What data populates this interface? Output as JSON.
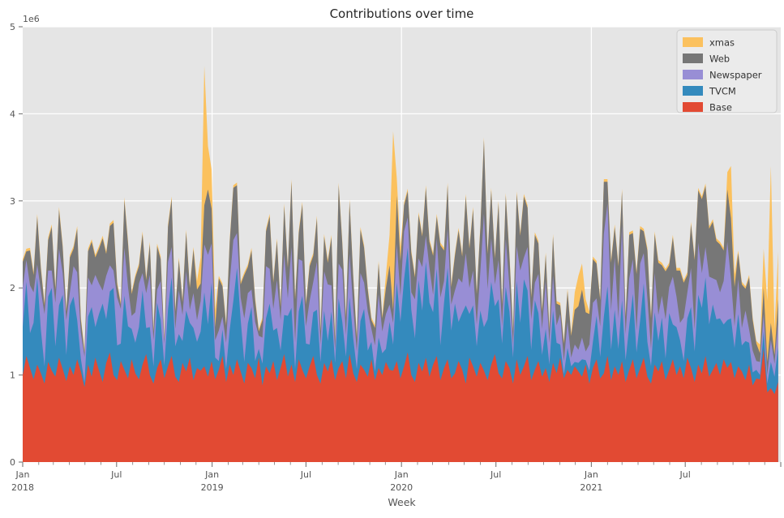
{
  "figure": {
    "title": "Contributions over time",
    "xlabel": "Week",
    "y_offset_label": "1e6"
  },
  "colors": {
    "fig_bg": "#ffffff",
    "axes_bg": "#e5e5e5",
    "grid": "#ffffff",
    "title_text": "#262626",
    "tick_text": "#555555",
    "tick_mark": "#777777",
    "legend_bg": "#ebebeb",
    "legend_border": "#cccccc"
  },
  "chart_data": {
    "type": "area",
    "stacked": true,
    "title": "Contributions over time",
    "xlabel": "Week",
    "ylabel": "",
    "ylim": [
      0,
      5
    ],
    "values_unit_multiplier": 1000000,
    "y_offset_text": "1e6",
    "y_ticks": [
      {
        "value": 0,
        "label": "0"
      },
      {
        "value": 1,
        "label": "1"
      },
      {
        "value": 2,
        "label": "2"
      },
      {
        "value": 3,
        "label": "3"
      },
      {
        "value": 4,
        "label": "4"
      },
      {
        "value": 5,
        "label": "5"
      }
    ],
    "x_unit": "weeks since 2018-01-01",
    "x_range": [
      0,
      208.714
    ],
    "x_major_ticks": [
      {
        "week": 0,
        "month": "Jan",
        "year": "2018"
      },
      {
        "week": 25.857,
        "month": "Jul",
        "year": ""
      },
      {
        "week": 52.143,
        "month": "Jan",
        "year": "2019"
      },
      {
        "week": 78.0,
        "month": "Jul",
        "year": ""
      },
      {
        "week": 104.286,
        "month": "Jan",
        "year": "2020"
      },
      {
        "week": 130.286,
        "month": "Jul",
        "year": ""
      },
      {
        "week": 156.571,
        "month": "Jan",
        "year": "2021"
      },
      {
        "week": 182.429,
        "month": "Jul",
        "year": ""
      },
      {
        "week": 208.714,
        "month": "",
        "year": ""
      }
    ],
    "grid": {
      "on": true,
      "color": "#ffffff",
      "vertical_at_weeks": [
        52.143,
        104.286,
        156.571
      ]
    },
    "legend": {
      "position": "upper right",
      "order_top_to_bottom": [
        "xmas",
        "Web",
        "Newspaper",
        "TVCM",
        "Base"
      ]
    },
    "series": [
      {
        "name": "Base",
        "color": "#E24A33",
        "values": [
          1.0,
          1.22,
          1.08,
          0.95,
          1.12,
          1.02,
          0.9,
          1.15,
          1.05,
          0.98,
          1.2,
          1.07,
          0.93,
          1.1,
          1.0,
          1.18,
          1.04,
          0.86,
          1.12,
          0.98,
          1.2,
          1.05,
          0.92,
          1.14,
          1.26,
          1.0,
          0.94,
          1.16,
          1.06,
          0.96,
          1.18,
          1.02,
          0.95,
          1.12,
          1.24,
          1.0,
          0.9,
          1.08,
          1.18,
          0.96,
          1.1,
          1.22,
          0.98,
          0.92,
          1.14,
          1.04,
          1.2,
          0.94,
          1.08,
          1.05,
          1.1,
          0.98,
          1.16,
          0.95,
          1.06,
          1.22,
          0.92,
          1.12,
          1.0,
          1.18,
          1.04,
          0.9,
          1.14,
          1.08,
          0.96,
          1.2,
          0.88,
          1.1,
          1.02,
          1.16,
          0.94,
          1.08,
          1.24,
          0.98,
          1.12,
          0.92,
          1.18,
          1.06,
          0.96,
          1.1,
          1.22,
          1.0,
          0.9,
          1.14,
          1.04,
          1.18,
          0.94,
          1.08,
          1.16,
          0.96,
          1.24,
          1.02,
          0.92,
          1.12,
          1.06,
          0.98,
          1.18,
          0.94,
          1.08,
          1.0,
          1.15,
          1.06,
          1.05,
          1.16,
          0.96,
          1.1,
          1.26,
          1.0,
          0.92,
          1.14,
          1.04,
          1.2,
          0.98,
          1.12,
          1.22,
          0.94,
          1.08,
          1.18,
          0.96,
          1.02,
          1.16,
          1.06,
          0.9,
          1.2,
          1.1,
          0.98,
          1.14,
          1.05,
          0.94,
          1.12,
          1.24,
          1.02,
          0.96,
          1.16,
          1.08,
          0.9,
          1.18,
          1.0,
          1.1,
          1.22,
          0.94,
          1.06,
          1.16,
          0.98,
          1.08,
          0.92,
          1.14,
          1.02,
          1.2,
          0.96,
          1.06,
          1.0,
          1.1,
          1.04,
          0.98,
          1.12,
          0.9,
          1.08,
          1.18,
          0.96,
          1.02,
          1.22,
          0.94,
          1.1,
          1.0,
          1.16,
          0.92,
          1.06,
          1.18,
          0.96,
          1.08,
          1.2,
          0.98,
          0.9,
          1.12,
          1.04,
          1.16,
          0.94,
          1.06,
          1.18,
          1.0,
          1.1,
          0.96,
          1.2,
          1.08,
          0.92,
          1.12,
          1.02,
          1.22,
          0.98,
          1.06,
          1.14,
          1.0,
          1.18,
          1.08,
          1.15,
          0.96,
          1.1,
          1.04,
          0.94,
          1.12,
          0.88,
          0.96,
          0.95,
          1.3,
          0.8,
          0.85,
          0.78,
          0.92
        ]
      },
      {
        "name": "TVCM",
        "color": "#348ABD",
        "values": [
          0.55,
          0.85,
          0.4,
          0.65,
          1.0,
          0.5,
          0.2,
          0.75,
          0.95,
          0.35,
          0.6,
          0.85,
          0.3,
          0.7,
          0.9,
          0.45,
          0.15,
          0.05,
          0.55,
          0.8,
          0.35,
          0.65,
          0.9,
          0.5,
          0.7,
          1.0,
          0.4,
          0.2,
          0.85,
          0.6,
          0.35,
          0.35,
          0.6,
          0.85,
          0.3,
          0.55,
          0.2,
          0.75,
          0.45,
          0.15,
          0.65,
          0.9,
          0.35,
          0.55,
          0.25,
          0.7,
          0.4,
          0.6,
          0.3,
          0.45,
          0.85,
          0.6,
          0.9,
          0.25,
          0.1,
          0.3,
          0.15,
          0.4,
          0.85,
          1.05,
          0.6,
          0.25,
          0.45,
          0.7,
          0.2,
          0.1,
          0.25,
          0.55,
          0.8,
          0.35,
          0.6,
          0.2,
          0.45,
          0.7,
          0.65,
          0.15,
          0.55,
          0.85,
          0.4,
          0.25,
          0.5,
          0.75,
          0.25,
          0.6,
          0.35,
          0.55,
          0.2,
          0.8,
          0.45,
          0.25,
          0.65,
          0.4,
          0.15,
          0.5,
          0.7,
          0.3,
          0.2,
          0.1,
          0.35,
          0.25,
          0.15,
          0.55,
          0.3,
          0.9,
          0.65,
          1.0,
          1.2,
          0.75,
          0.5,
          0.95,
          0.7,
          1.1,
          0.85,
          0.6,
          1.0,
          0.4,
          0.75,
          1.05,
          0.55,
          0.8,
          0.45,
          0.65,
          0.9,
          0.5,
          0.7,
          0.35,
          0.6,
          0.5,
          0.7,
          0.95,
          0.55,
          0.85,
          0.4,
          0.85,
          0.65,
          0.3,
          0.9,
          0.6,
          1.0,
          0.75,
          0.35,
          0.8,
          0.55,
          0.25,
          0.45,
          0.2,
          0.6,
          0.35,
          0.15,
          0.05,
          0.25,
          0.1,
          0.05,
          0.1,
          0.2,
          0.05,
          0.15,
          0.3,
          0.5,
          0.25,
          0.65,
          0.8,
          0.35,
          0.65,
          0.3,
          0.7,
          0.25,
          0.5,
          0.75,
          0.3,
          0.55,
          0.85,
          0.4,
          0.2,
          0.6,
          0.35,
          0.5,
          0.25,
          0.65,
          0.4,
          0.55,
          0.3,
          0.2,
          0.45,
          0.7,
          0.35,
          0.8,
          0.75,
          0.9,
          0.6,
          0.75,
          0.5,
          0.65,
          0.4,
          0.55,
          0.5,
          0.35,
          0.6,
          0.3,
          0.45,
          0.25,
          0.15,
          0.1,
          0.05,
          0.2,
          0.1,
          0.3,
          0.2,
          0.4
        ]
      },
      {
        "name": "Newspaper",
        "color": "#988ED5",
        "values": [
          0.45,
          0.25,
          0.55,
          0.35,
          0.15,
          0.45,
          0.6,
          0.3,
          0.2,
          0.5,
          0.65,
          0.25,
          0.4,
          0.15,
          0.35,
          0.55,
          0.3,
          0.3,
          0.45,
          0.25,
          0.6,
          0.35,
          0.15,
          0.5,
          0.3,
          0.2,
          0.55,
          0.4,
          0.55,
          0.45,
          0.15,
          0.35,
          0.5,
          0.2,
          0.4,
          0.6,
          0.3,
          0.15,
          0.45,
          0.25,
          0.55,
          0.35,
          0.2,
          0.5,
          0.3,
          0.45,
          0.15,
          0.4,
          0.25,
          0.35,
          0.55,
          0.8,
          0.45,
          0.2,
          0.35,
          0.15,
          0.3,
          0.55,
          0.7,
          0.4,
          0.25,
          0.5,
          0.35,
          0.2,
          0.45,
          0.15,
          0.3,
          0.6,
          0.4,
          0.25,
          0.55,
          0.35,
          0.7,
          0.2,
          0.7,
          0.3,
          0.6,
          0.4,
          0.2,
          0.5,
          0.35,
          0.55,
          0.2,
          0.45,
          0.65,
          0.3,
          0.15,
          0.4,
          0.6,
          0.25,
          0.5,
          0.35,
          0.2,
          0.55,
          0.3,
          0.45,
          0.15,
          0.3,
          0.5,
          0.25,
          0.4,
          0.2,
          0.25,
          0.45,
          0.3,
          0.55,
          0.35,
          0.2,
          0.45,
          0.25,
          0.5,
          0.3,
          0.4,
          0.2,
          0.35,
          0.55,
          0.25,
          0.45,
          0.3,
          0.15,
          0.5,
          0.35,
          0.6,
          0.3,
          0.4,
          0.25,
          0.45,
          1.3,
          0.35,
          0.5,
          0.25,
          0.45,
          0.2,
          0.55,
          0.3,
          0.15,
          0.4,
          0.6,
          0.25,
          0.5,
          0.35,
          0.2,
          0.45,
          0.3,
          0.55,
          0.25,
          0.4,
          0.2,
          0.35,
          0.15,
          0.3,
          0.1,
          0.2,
          0.15,
          0.25,
          0.1,
          0.3,
          0.45,
          0.2,
          0.35,
          0.95,
          0.95,
          0.45,
          0.6,
          0.35,
          0.85,
          0.3,
          0.55,
          0.4,
          0.25,
          0.65,
          0.35,
          0.5,
          0.2,
          0.45,
          0.3,
          0.25,
          0.45,
          0.3,
          0.55,
          0.35,
          0.2,
          0.5,
          0.3,
          0.45,
          0.25,
          0.6,
          0.4,
          0.35,
          0.55,
          0.3,
          0.45,
          0.3,
          0.5,
          0.9,
          0.45,
          0.25,
          0.4,
          0.2,
          0.35,
          0.15,
          0.25,
          0.1,
          0.15,
          0.2,
          0.1,
          0.25,
          0.15,
          0.3
        ]
      },
      {
        "name": "Web",
        "color": "#777777",
        "values": [
          0.3,
          0.1,
          0.4,
          0.2,
          0.55,
          0.25,
          0.1,
          0.35,
          0.5,
          0.15,
          0.45,
          0.3,
          0.1,
          0.4,
          0.2,
          0.5,
          0.15,
          0.05,
          0.3,
          0.5,
          0.2,
          0.4,
          0.6,
          0.25,
          0.45,
          0.55,
          0.15,
          0.05,
          0.55,
          0.5,
          0.25,
          0.4,
          0.2,
          0.45,
          0.15,
          0.35,
          0.1,
          0.5,
          0.25,
          0.05,
          0.4,
          0.55,
          0.2,
          0.35,
          0.15,
          0.45,
          0.25,
          0.5,
          0.35,
          0.2,
          0.45,
          0.75,
          0.4,
          0.15,
          0.6,
          0.35,
          0.2,
          0.45,
          0.6,
          0.55,
          0.15,
          0.5,
          0.3,
          0.45,
          0.25,
          0.05,
          0.2,
          0.4,
          0.6,
          0.3,
          0.45,
          0.15,
          0.55,
          0.35,
          0.75,
          0.5,
          0.3,
          0.65,
          0.25,
          0.4,
          0.3,
          0.5,
          0.15,
          0.4,
          0.25,
          0.55,
          0.1,
          0.9,
          0.3,
          0.2,
          0.6,
          0.35,
          0.15,
          0.5,
          0.4,
          0.25,
          0.1,
          0.2,
          0.35,
          0.15,
          0.3,
          0.45,
          0.15,
          0.55,
          0.4,
          0.3,
          0.3,
          0.45,
          0.25,
          0.5,
          0.35,
          0.55,
          0.3,
          0.45,
          0.25,
          0.6,
          0.35,
          0.5,
          0.2,
          0.4,
          0.55,
          0.3,
          0.65,
          0.45,
          0.7,
          0.35,
          0.5,
          0.85,
          0.4,
          0.55,
          0.3,
          0.65,
          0.25,
          0.5,
          0.35,
          0.15,
          0.6,
          0.4,
          0.7,
          0.45,
          0.25,
          0.55,
          0.35,
          0.2,
          0.3,
          0.15,
          0.45,
          0.25,
          0.1,
          0.2,
          0.35,
          0.25,
          0.4,
          0.5,
          0.55,
          0.45,
          0.35,
          0.5,
          0.4,
          0.3,
          0.6,
          0.25,
          0.55,
          0.35,
          0.6,
          0.4,
          0.2,
          0.5,
          0.3,
          0.65,
          0.4,
          0.25,
          0.55,
          0.35,
          0.45,
          0.6,
          0.35,
          0.55,
          0.25,
          0.45,
          0.3,
          0.6,
          0.4,
          0.2,
          0.5,
          0.8,
          0.6,
          0.85,
          0.7,
          0.55,
          0.65,
          0.45,
          0.55,
          0.35,
          0.6,
          0.7,
          0.45,
          0.3,
          0.5,
          0.25,
          0.6,
          0.35,
          0.2,
          0.1,
          0.3,
          0.15,
          0.2,
          0.1,
          0.25
        ]
      },
      {
        "name": "xmas",
        "color": "#FBC15E",
        "values": [
          0.03,
          0.03,
          0.03,
          0.03,
          0.03,
          0.03,
          0.03,
          0.03,
          0.03,
          0.03,
          0.03,
          0.03,
          0.03,
          0.03,
          0.03,
          0.03,
          0.03,
          0.03,
          0.03,
          0.03,
          0.03,
          0.03,
          0.03,
          0.03,
          0.03,
          0.03,
          0.03,
          0.03,
          0.03,
          0.03,
          0.03,
          0.03,
          0.03,
          0.03,
          0.03,
          0.03,
          0.03,
          0.03,
          0.03,
          0.03,
          0.03,
          0.03,
          0.03,
          0.03,
          0.03,
          0.03,
          0.03,
          0.03,
          0.1,
          0.3,
          1.6,
          0.5,
          0.45,
          0.2,
          0.03,
          0.03,
          0.03,
          0.03,
          0.03,
          0.03,
          0.03,
          0.03,
          0.03,
          0.03,
          0.03,
          0.03,
          0.03,
          0.03,
          0.03,
          0.03,
          0.03,
          0.03,
          0.03,
          0.03,
          0.03,
          0.03,
          0.03,
          0.03,
          0.03,
          0.03,
          0.03,
          0.03,
          0.03,
          0.03,
          0.03,
          0.03,
          0.03,
          0.03,
          0.03,
          0.03,
          0.03,
          0.03,
          0.03,
          0.03,
          0.03,
          0.03,
          0.03,
          0.03,
          0.03,
          0.03,
          0.15,
          0.35,
          2.05,
          0.2,
          0.15,
          0.03,
          0.03,
          0.03,
          0.03,
          0.03,
          0.03,
          0.03,
          0.03,
          0.03,
          0.03,
          0.03,
          0.03,
          0.03,
          0.03,
          0.03,
          0.03,
          0.03,
          0.03,
          0.03,
          0.03,
          0.03,
          0.03,
          0.03,
          0.03,
          0.03,
          0.03,
          0.03,
          0.03,
          0.03,
          0.03,
          0.03,
          0.03,
          0.03,
          0.03,
          0.03,
          0.03,
          0.03,
          0.03,
          0.03,
          0.03,
          0.03,
          0.03,
          0.03,
          0.03,
          0.03,
          0.03,
          0.03,
          0.2,
          0.35,
          0.3,
          0.15,
          0.03,
          0.03,
          0.03,
          0.03,
          0.03,
          0.03,
          0.03,
          0.03,
          0.03,
          0.03,
          0.03,
          0.03,
          0.03,
          0.03,
          0.03,
          0.03,
          0.03,
          0.03,
          0.03,
          0.03,
          0.03,
          0.03,
          0.03,
          0.03,
          0.03,
          0.03,
          0.03,
          0.03,
          0.03,
          0.03,
          0.03,
          0.03,
          0.03,
          0.03,
          0.03,
          0.03,
          0.03,
          0.03,
          0.2,
          0.6,
          0.15,
          0.03,
          0.03,
          0.03,
          0.03,
          0.03,
          0.03,
          0.1,
          0.45,
          0.7,
          1.8,
          0.3,
          0.55
        ]
      }
    ]
  }
}
